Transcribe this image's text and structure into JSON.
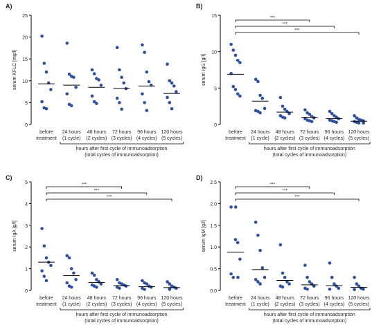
{
  "figure": {
    "x_tick_labels": [
      [
        "before",
        "treatment"
      ],
      [
        "24 hours",
        "(1 cycle)"
      ],
      [
        "48 hours",
        "(2 cycles)"
      ],
      [
        "72 hours",
        "(3 cycles)"
      ],
      [
        "96 hours",
        "(4 cycles)"
      ],
      [
        "120 hours",
        "(5 cycles)"
      ]
    ],
    "x_group_label": [
      "hours after first cycle of immunoadsorption",
      "(total cycles of immunoadsorption)"
    ],
    "colors": {
      "points": "#2e4f9e",
      "lines": "#000000"
    }
  },
  "chart_data": [
    {
      "type": "scatter",
      "panel": "A)",
      "ylabel": "serum KFLC [mg/l]",
      "ylim": [
        0,
        25
      ],
      "yticks": [
        "0",
        "5",
        "10",
        "15",
        "20",
        "25"
      ],
      "means": [
        9.3,
        9.0,
        8.5,
        8.2,
        8.8,
        7.1
      ],
      "series": [
        [
          20.2,
          14.0,
          12.0,
          9.5,
          8.0,
          5.2,
          3.8,
          3.6
        ],
        [
          18.6,
          11.5,
          11.0,
          10.8,
          8.5,
          7.0,
          4.6,
          4.3
        ],
        [
          12.5,
          11.6,
          10.5,
          10.2,
          9.0,
          6.5,
          5.2,
          4.8
        ],
        [
          17.6,
          12.5,
          10.8,
          9.5,
          8.2,
          6.0,
          5.0,
          3.5
        ],
        [
          18.2,
          16.5,
          12.0,
          9.8,
          9.0,
          7.0,
          5.0,
          3.2
        ],
        [
          13.8,
          10.0,
          9.5,
          8.8,
          7.5,
          6.2,
          5.0,
          3.6
        ]
      ],
      "significance": []
    },
    {
      "type": "scatter",
      "panel": "B)",
      "ylabel": "serum IgG [g/l]",
      "ylim": [
        0,
        15
      ],
      "yticks": [
        "0",
        "5",
        "10",
        "15"
      ],
      "means": [
        6.9,
        3.2,
        1.7,
        1.0,
        0.8,
        0.45
      ],
      "series": [
        [
          11.0,
          10.2,
          9.5,
          8.8,
          8.5,
          7.0,
          5.2,
          4.8,
          4.2,
          3.9
        ],
        [
          6.2,
          5.9,
          4.0,
          3.6,
          2.2,
          1.9,
          1.8,
          1.6
        ],
        [
          3.7,
          2.5,
          2.1,
          1.8,
          1.5,
          1.2,
          1.0,
          0.9
        ],
        [
          2.0,
          1.6,
          1.4,
          1.1,
          0.9,
          0.8,
          0.6,
          0.5,
          0.4
        ],
        [
          1.8,
          1.5,
          1.2,
          1.0,
          0.8,
          0.6,
          0.5,
          0.4,
          0.3
        ],
        [
          1.2,
          0.9,
          0.7,
          0.6,
          0.5,
          0.4,
          0.3,
          0.2,
          0.2
        ]
      ],
      "significance": [
        {
          "from": 0,
          "to": 3,
          "label": "***"
        },
        {
          "from": 0,
          "to": 4,
          "label": "***"
        },
        {
          "from": 0,
          "to": 5,
          "label": "***"
        }
      ]
    },
    {
      "type": "scatter",
      "panel": "C)",
      "ylabel": "serum IgA [g/l]",
      "ylim": [
        0,
        5
      ],
      "yticks": [
        "0",
        "1",
        "2",
        "3",
        "4",
        "5"
      ],
      "means": [
        1.3,
        0.68,
        0.37,
        0.22,
        0.17,
        0.13
      ],
      "series": [
        [
          2.85,
          2.05,
          1.5,
          1.3,
          1.15,
          0.9,
          0.65,
          0.45
        ],
        [
          1.6,
          1.5,
          1.0,
          0.8,
          0.5,
          0.35,
          0.2,
          0.15
        ],
        [
          0.8,
          0.7,
          0.5,
          0.4,
          0.3,
          0.25,
          0.2,
          0.15
        ],
        [
          0.5,
          0.35,
          0.3,
          0.25,
          0.2,
          0.15,
          0.1
        ],
        [
          0.45,
          0.35,
          0.3,
          0.2,
          0.15,
          0.1,
          0.05
        ],
        [
          0.4,
          0.3,
          0.2,
          0.15,
          0.1,
          0.08,
          0.05
        ]
      ],
      "significance": [
        {
          "from": 0,
          "to": 3,
          "label": "***"
        },
        {
          "from": 0,
          "to": 4,
          "label": "***"
        },
        {
          "from": 0,
          "to": 5,
          "label": "***"
        }
      ]
    },
    {
      "type": "scatter",
      "panel": "D)",
      "ylabel": "serum IgM [g/l]",
      "ylim": [
        0,
        2.5
      ],
      "yticks": [
        "0.0",
        "0.5",
        "1.0",
        "1.5",
        "2.0",
        "2.5"
      ],
      "means": [
        0.88,
        0.48,
        0.23,
        0.13,
        0.11,
        0.07
      ],
      "series": [
        [
          1.92,
          1.92,
          1.17,
          1.1,
          0.72,
          0.38,
          0.3,
          0.3
        ],
        [
          1.57,
          1.27,
          0.92,
          0.52,
          0.3,
          0.25,
          0.2,
          0.15
        ],
        [
          1.05,
          0.4,
          0.3,
          0.2,
          0.15,
          0.1,
          0.08
        ],
        [
          0.58,
          0.3,
          0.2,
          0.15,
          0.1,
          0.05,
          0.03
        ],
        [
          0.63,
          0.3,
          0.15,
          0.1,
          0.05,
          0.03
        ],
        [
          0.3,
          0.15,
          0.1,
          0.05,
          0.03,
          0.02
        ]
      ],
      "significance": [
        {
          "from": 0,
          "to": 3,
          "label": "***"
        },
        {
          "from": 0,
          "to": 4,
          "label": "***"
        },
        {
          "from": 0,
          "to": 5,
          "label": "***"
        }
      ]
    }
  ]
}
